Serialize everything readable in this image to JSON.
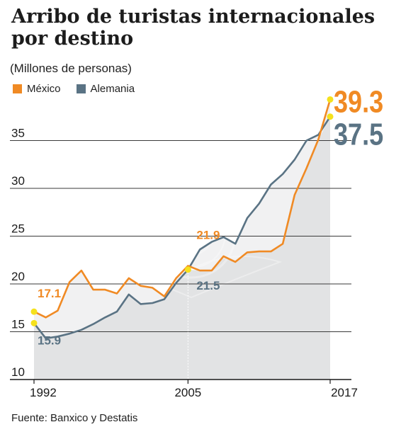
{
  "header": {
    "title": "Arribo de turistas internacionales por destino",
    "subtitle": "(Millones de personas)"
  },
  "legend": [
    {
      "label": "México",
      "color": "#f08a24"
    },
    {
      "label": "Alemania",
      "color": "#5a7384"
    }
  ],
  "footer": {
    "source": "Fuente: Banxico y Destatis"
  },
  "chart_data": {
    "type": "line",
    "title": "Arribo de turistas internacionales por destino",
    "subtitle": "(Millones de personas)",
    "xlabel": "",
    "ylabel": "",
    "xlim": [
      1992,
      2017
    ],
    "ylim": [
      10,
      40
    ],
    "yticks": [
      10,
      15,
      20,
      25,
      30,
      35
    ],
    "xticks": [
      1992,
      2005,
      2017
    ],
    "grid": "horizontal",
    "legend_position": "top-left",
    "x": [
      1992,
      1993,
      1994,
      1995,
      1996,
      1997,
      1998,
      1999,
      2000,
      2001,
      2002,
      2003,
      2004,
      2005,
      2006,
      2007,
      2008,
      2009,
      2010,
      2011,
      2012,
      2013,
      2014,
      2015,
      2016,
      2017
    ],
    "series": [
      {
        "name": "México",
        "color": "#f08a24",
        "values": [
          17.1,
          16.5,
          17.2,
          20.2,
          21.4,
          19.4,
          19.4,
          19.0,
          20.6,
          19.8,
          19.6,
          18.7,
          20.6,
          21.9,
          21.4,
          21.4,
          22.9,
          22.3,
          23.3,
          23.4,
          23.4,
          24.2,
          29.3,
          32.1,
          35.1,
          39.3
        ]
      },
      {
        "name": "Alemania",
        "color": "#5a7384",
        "values": [
          15.9,
          14.3,
          14.5,
          14.8,
          15.2,
          15.8,
          16.5,
          17.1,
          18.9,
          17.9,
          18.0,
          18.4,
          20.1,
          21.5,
          23.6,
          24.4,
          24.9,
          24.2,
          26.9,
          28.4,
          30.4,
          31.5,
          33.0,
          35.0,
          35.6,
          37.5
        ]
      }
    ],
    "annotations": [
      {
        "text": "17.1",
        "series": "México",
        "x": 1992,
        "value": 17.1
      },
      {
        "text": "15.9",
        "series": "Alemania",
        "x": 1992,
        "value": 15.9
      },
      {
        "text": "21.9",
        "series": "México",
        "x": 2005,
        "value": 21.9
      },
      {
        "text": "21.5",
        "series": "Alemania",
        "x": 2005,
        "value": 21.5
      },
      {
        "text": "39.3",
        "series": "México",
        "x": 2017,
        "value": 39.3
      },
      {
        "text": "37.5",
        "series": "Alemania",
        "x": 2017,
        "value": 37.5
      }
    ],
    "marker_color": "#f5e11c",
    "fill_color": "#e2e3e4"
  }
}
